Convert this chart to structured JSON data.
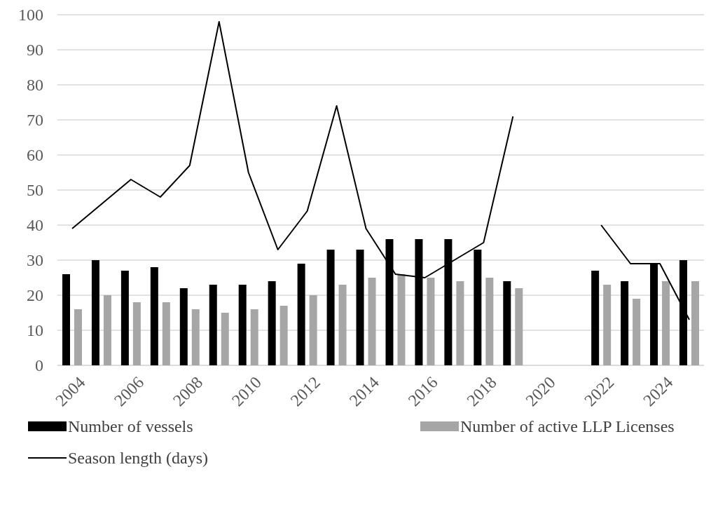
{
  "chart_data": {
    "type": "bar",
    "categories": [
      "2004",
      null,
      "2006",
      null,
      "2008",
      null,
      "2010",
      null,
      "2012",
      null,
      "2014",
      null,
      "2016",
      null,
      "2018",
      null,
      "2020",
      null,
      "2022",
      null,
      "2024",
      null
    ],
    "series": [
      {
        "name": "Number of vessels",
        "color": "#000000",
        "values": [
          26,
          30,
          27,
          28,
          22,
          23,
          23,
          24,
          29,
          33,
          33,
          36,
          36,
          36,
          33,
          24,
          null,
          null,
          27,
          24,
          29,
          30
        ]
      },
      {
        "name": "Number of active LLP Licenses",
        "color": "#a6a6a6",
        "values": [
          16,
          20,
          18,
          18,
          16,
          15,
          16,
          17,
          20,
          23,
          25,
          26,
          25,
          24,
          25,
          22,
          null,
          null,
          23,
          19,
          24,
          24
        ]
      },
      {
        "name": "Season length (days)",
        "type": "line",
        "color": "#000000",
        "values": [
          39,
          46,
          53,
          48,
          57,
          98,
          55,
          33,
          44,
          74,
          39,
          26,
          25,
          30,
          35,
          71,
          null,
          null,
          40,
          29,
          29,
          13
        ]
      }
    ],
    "ylim": [
      0,
      100
    ],
    "yticks": [
      0,
      10,
      20,
      30,
      40,
      50,
      60,
      70,
      80,
      90,
      100
    ],
    "grid": "y",
    "legend": "bottom"
  }
}
